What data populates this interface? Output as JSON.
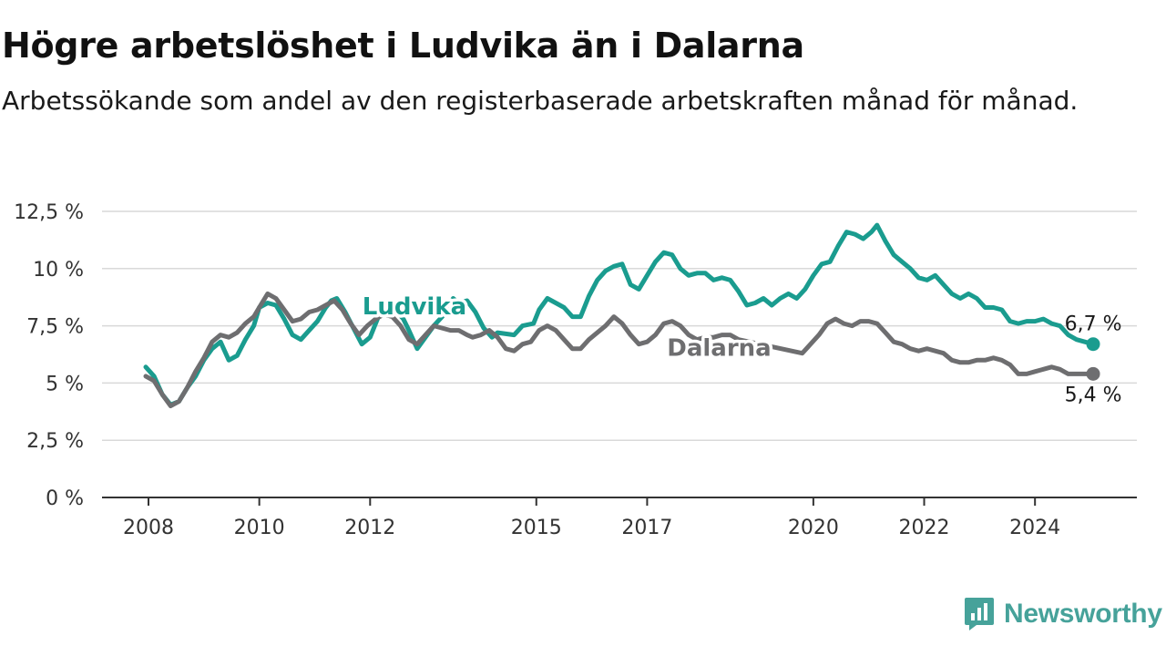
{
  "title": "Högre arbetslöshet i Ludvika än i Dalarna",
  "subtitle": "Arbetssökande som andel av den registerbaserade arbetskraften månad för månad.",
  "brand": {
    "name": "Newsworthy",
    "color": "#46a29a",
    "icon": "newsworthy-logo-icon"
  },
  "chart_data": {
    "type": "line",
    "title": "Högre arbetslöshet i Ludvika än i Dalarna",
    "subtitle": "Arbetssökande som andel av den registerbaserade arbetskraften månad för månad.",
    "xlabel": "",
    "ylabel": "",
    "xlim": [
      2008,
      2025.2
    ],
    "ylim": [
      0,
      12.5
    ],
    "x_ticks": [
      {
        "value": 2008,
        "label": "2008"
      },
      {
        "value": 2010,
        "label": "2010"
      },
      {
        "value": 2012,
        "label": "2012"
      },
      {
        "value": 2015,
        "label": "2015"
      },
      {
        "value": 2017,
        "label": "2017"
      },
      {
        "value": 2020,
        "label": "2020"
      },
      {
        "value": 2022,
        "label": "2022"
      },
      {
        "value": 2024,
        "label": "2024"
      }
    ],
    "y_ticks": [
      {
        "value": 0,
        "label": "0 %"
      },
      {
        "value": 2.5,
        "label": "2,5 %"
      },
      {
        "value": 5,
        "label": "5 %"
      },
      {
        "value": 7.5,
        "label": "7,5 %"
      },
      {
        "value": 10,
        "label": "10 %"
      },
      {
        "value": 12.5,
        "label": "12,5 %"
      }
    ],
    "grid": "horizontal",
    "legend": "inline labels",
    "series": [
      {
        "name": "Ludvika",
        "color": "#1a9c8f",
        "label_at": [
          2012.8,
          8.0
        ],
        "end_label": "6,7 %",
        "points": [
          [
            2007.95,
            5.7
          ],
          [
            2008.1,
            5.3
          ],
          [
            2008.25,
            4.5
          ],
          [
            2008.4,
            4.05
          ],
          [
            2008.55,
            4.2
          ],
          [
            2008.7,
            4.8
          ],
          [
            2008.85,
            5.3
          ],
          [
            2009.0,
            6.0
          ],
          [
            2009.15,
            6.5
          ],
          [
            2009.3,
            6.8
          ],
          [
            2009.45,
            6.0
          ],
          [
            2009.6,
            6.2
          ],
          [
            2009.75,
            6.9
          ],
          [
            2009.9,
            7.5
          ],
          [
            2010.0,
            8.3
          ],
          [
            2010.15,
            8.5
          ],
          [
            2010.3,
            8.4
          ],
          [
            2010.45,
            7.8
          ],
          [
            2010.6,
            7.1
          ],
          [
            2010.75,
            6.9
          ],
          [
            2010.9,
            7.3
          ],
          [
            2011.05,
            7.7
          ],
          [
            2011.2,
            8.3
          ],
          [
            2011.3,
            8.6
          ],
          [
            2011.4,
            8.7
          ],
          [
            2011.55,
            8.1
          ],
          [
            2011.7,
            7.4
          ],
          [
            2011.85,
            6.7
          ],
          [
            2012.0,
            7.0
          ],
          [
            2012.15,
            7.9
          ],
          [
            2012.3,
            8.3
          ],
          [
            2012.45,
            8.2
          ],
          [
            2012.6,
            7.8
          ],
          [
            2012.7,
            7.3
          ],
          [
            2012.85,
            6.5
          ],
          [
            2013.0,
            7.0
          ],
          [
            2013.15,
            7.5
          ],
          [
            2013.3,
            7.9
          ],
          [
            2013.4,
            8.2
          ],
          [
            2013.5,
            8.7
          ],
          [
            2013.6,
            8.5
          ],
          [
            2013.75,
            8.6
          ],
          [
            2013.9,
            8.1
          ],
          [
            2014.05,
            7.4
          ],
          [
            2014.2,
            7.0
          ],
          [
            2014.3,
            7.2
          ],
          [
            2014.6,
            7.1
          ],
          [
            2014.75,
            7.5
          ],
          [
            2014.95,
            7.6
          ],
          [
            2015.05,
            8.2
          ],
          [
            2015.2,
            8.7
          ],
          [
            2015.35,
            8.5
          ],
          [
            2015.5,
            8.3
          ],
          [
            2015.65,
            7.9
          ],
          [
            2015.8,
            7.9
          ],
          [
            2015.95,
            8.8
          ],
          [
            2016.1,
            9.5
          ],
          [
            2016.25,
            9.9
          ],
          [
            2016.4,
            10.1
          ],
          [
            2016.55,
            10.2
          ],
          [
            2016.7,
            9.3
          ],
          [
            2016.85,
            9.1
          ],
          [
            2017.0,
            9.7
          ],
          [
            2017.15,
            10.3
          ],
          [
            2017.3,
            10.7
          ],
          [
            2017.45,
            10.6
          ],
          [
            2017.6,
            10.0
          ],
          [
            2017.75,
            9.7
          ],
          [
            2017.9,
            9.8
          ],
          [
            2018.05,
            9.8
          ],
          [
            2018.2,
            9.5
          ],
          [
            2018.35,
            9.6
          ],
          [
            2018.5,
            9.5
          ],
          [
            2018.65,
            9.0
          ],
          [
            2018.8,
            8.4
          ],
          [
            2018.95,
            8.5
          ],
          [
            2019.1,
            8.7
          ],
          [
            2019.25,
            8.4
          ],
          [
            2019.4,
            8.7
          ],
          [
            2019.55,
            8.9
          ],
          [
            2019.7,
            8.7
          ],
          [
            2019.85,
            9.1
          ],
          [
            2020.0,
            9.7
          ],
          [
            2020.15,
            10.2
          ],
          [
            2020.3,
            10.3
          ],
          [
            2020.45,
            11.0
          ],
          [
            2020.6,
            11.6
          ],
          [
            2020.75,
            11.5
          ],
          [
            2020.9,
            11.3
          ],
          [
            2021.05,
            11.6
          ],
          [
            2021.15,
            11.9
          ],
          [
            2021.3,
            11.2
          ],
          [
            2021.45,
            10.6
          ],
          [
            2021.6,
            10.3
          ],
          [
            2021.75,
            10.0
          ],
          [
            2021.9,
            9.6
          ],
          [
            2022.05,
            9.5
          ],
          [
            2022.2,
            9.7
          ],
          [
            2022.35,
            9.3
          ],
          [
            2022.5,
            8.9
          ],
          [
            2022.65,
            8.7
          ],
          [
            2022.8,
            8.9
          ],
          [
            2022.95,
            8.7
          ],
          [
            2023.1,
            8.3
          ],
          [
            2023.25,
            8.3
          ],
          [
            2023.4,
            8.2
          ],
          [
            2023.55,
            7.7
          ],
          [
            2023.7,
            7.6
          ],
          [
            2023.85,
            7.7
          ],
          [
            2024.0,
            7.7
          ],
          [
            2024.15,
            7.8
          ],
          [
            2024.3,
            7.6
          ],
          [
            2024.45,
            7.5
          ],
          [
            2024.6,
            7.1
          ],
          [
            2024.75,
            6.9
          ],
          [
            2024.9,
            6.8
          ],
          [
            2025.05,
            6.7
          ]
        ]
      },
      {
        "name": "Dalarna",
        "color": "#6e6e70",
        "label_at": [
          2018.3,
          6.2
        ],
        "end_label": "5,4 %",
        "points": [
          [
            2007.95,
            5.3
          ],
          [
            2008.1,
            5.1
          ],
          [
            2008.25,
            4.5
          ],
          [
            2008.4,
            4.0
          ],
          [
            2008.55,
            4.2
          ],
          [
            2008.7,
            4.8
          ],
          [
            2008.85,
            5.5
          ],
          [
            2009.0,
            6.1
          ],
          [
            2009.15,
            6.8
          ],
          [
            2009.3,
            7.1
          ],
          [
            2009.45,
            7.0
          ],
          [
            2009.6,
            7.2
          ],
          [
            2009.75,
            7.6
          ],
          [
            2009.9,
            7.9
          ],
          [
            2010.0,
            8.3
          ],
          [
            2010.15,
            8.9
          ],
          [
            2010.3,
            8.7
          ],
          [
            2010.45,
            8.2
          ],
          [
            2010.6,
            7.7
          ],
          [
            2010.75,
            7.8
          ],
          [
            2010.9,
            8.1
          ],
          [
            2011.05,
            8.2
          ],
          [
            2011.2,
            8.4
          ],
          [
            2011.35,
            8.6
          ],
          [
            2011.5,
            8.2
          ],
          [
            2011.65,
            7.6
          ],
          [
            2011.8,
            7.1
          ],
          [
            2011.95,
            7.5
          ],
          [
            2012.1,
            7.8
          ],
          [
            2012.25,
            8.0
          ],
          [
            2012.4,
            7.9
          ],
          [
            2012.55,
            7.5
          ],
          [
            2012.7,
            6.9
          ],
          [
            2012.85,
            6.7
          ],
          [
            2013.0,
            7.1
          ],
          [
            2013.15,
            7.5
          ],
          [
            2013.3,
            7.4
          ],
          [
            2013.45,
            7.3
          ],
          [
            2013.6,
            7.3
          ],
          [
            2013.75,
            7.1
          ],
          [
            2013.85,
            7.0
          ],
          [
            2014.0,
            7.1
          ],
          [
            2014.15,
            7.3
          ],
          [
            2014.3,
            7.0
          ],
          [
            2014.45,
            6.5
          ],
          [
            2014.6,
            6.4
          ],
          [
            2014.75,
            6.7
          ],
          [
            2014.9,
            6.8
          ],
          [
            2015.05,
            7.3
          ],
          [
            2015.2,
            7.5
          ],
          [
            2015.35,
            7.3
          ],
          [
            2015.5,
            6.9
          ],
          [
            2015.65,
            6.5
          ],
          [
            2015.8,
            6.5
          ],
          [
            2015.95,
            6.9
          ],
          [
            2016.1,
            7.2
          ],
          [
            2016.25,
            7.5
          ],
          [
            2016.4,
            7.9
          ],
          [
            2016.55,
            7.6
          ],
          [
            2016.7,
            7.1
          ],
          [
            2016.85,
            6.7
          ],
          [
            2017.0,
            6.8
          ],
          [
            2017.15,
            7.1
          ],
          [
            2017.3,
            7.6
          ],
          [
            2017.45,
            7.7
          ],
          [
            2017.6,
            7.5
          ],
          [
            2017.75,
            7.1
          ],
          [
            2017.9,
            6.9
          ],
          [
            2018.05,
            7.0
          ],
          [
            2018.2,
            7.0
          ],
          [
            2018.35,
            7.1
          ],
          [
            2018.5,
            7.1
          ],
          [
            2018.65,
            6.9
          ],
          [
            2019.8,
            6.3
          ],
          [
            2019.95,
            6.7
          ],
          [
            2020.1,
            7.1
          ],
          [
            2020.25,
            7.6
          ],
          [
            2020.4,
            7.8
          ],
          [
            2020.55,
            7.6
          ],
          [
            2020.7,
            7.5
          ],
          [
            2020.85,
            7.7
          ],
          [
            2021.0,
            7.7
          ],
          [
            2021.15,
            7.6
          ],
          [
            2021.3,
            7.2
          ],
          [
            2021.45,
            6.8
          ],
          [
            2021.6,
            6.7
          ],
          [
            2021.75,
            6.5
          ],
          [
            2021.9,
            6.4
          ],
          [
            2022.05,
            6.5
          ],
          [
            2022.2,
            6.4
          ],
          [
            2022.35,
            6.3
          ],
          [
            2022.5,
            6.0
          ],
          [
            2022.65,
            5.9
          ],
          [
            2022.8,
            5.9
          ],
          [
            2022.95,
            6.0
          ],
          [
            2023.1,
            6.0
          ],
          [
            2023.25,
            6.1
          ],
          [
            2023.4,
            6.0
          ],
          [
            2023.55,
            5.8
          ],
          [
            2023.7,
            5.4
          ],
          [
            2023.85,
            5.4
          ],
          [
            2024.0,
            5.5
          ],
          [
            2024.15,
            5.6
          ],
          [
            2024.3,
            5.7
          ],
          [
            2024.45,
            5.6
          ],
          [
            2024.6,
            5.4
          ],
          [
            2024.75,
            5.4
          ],
          [
            2024.9,
            5.4
          ],
          [
            2025.05,
            5.4
          ]
        ]
      }
    ]
  }
}
